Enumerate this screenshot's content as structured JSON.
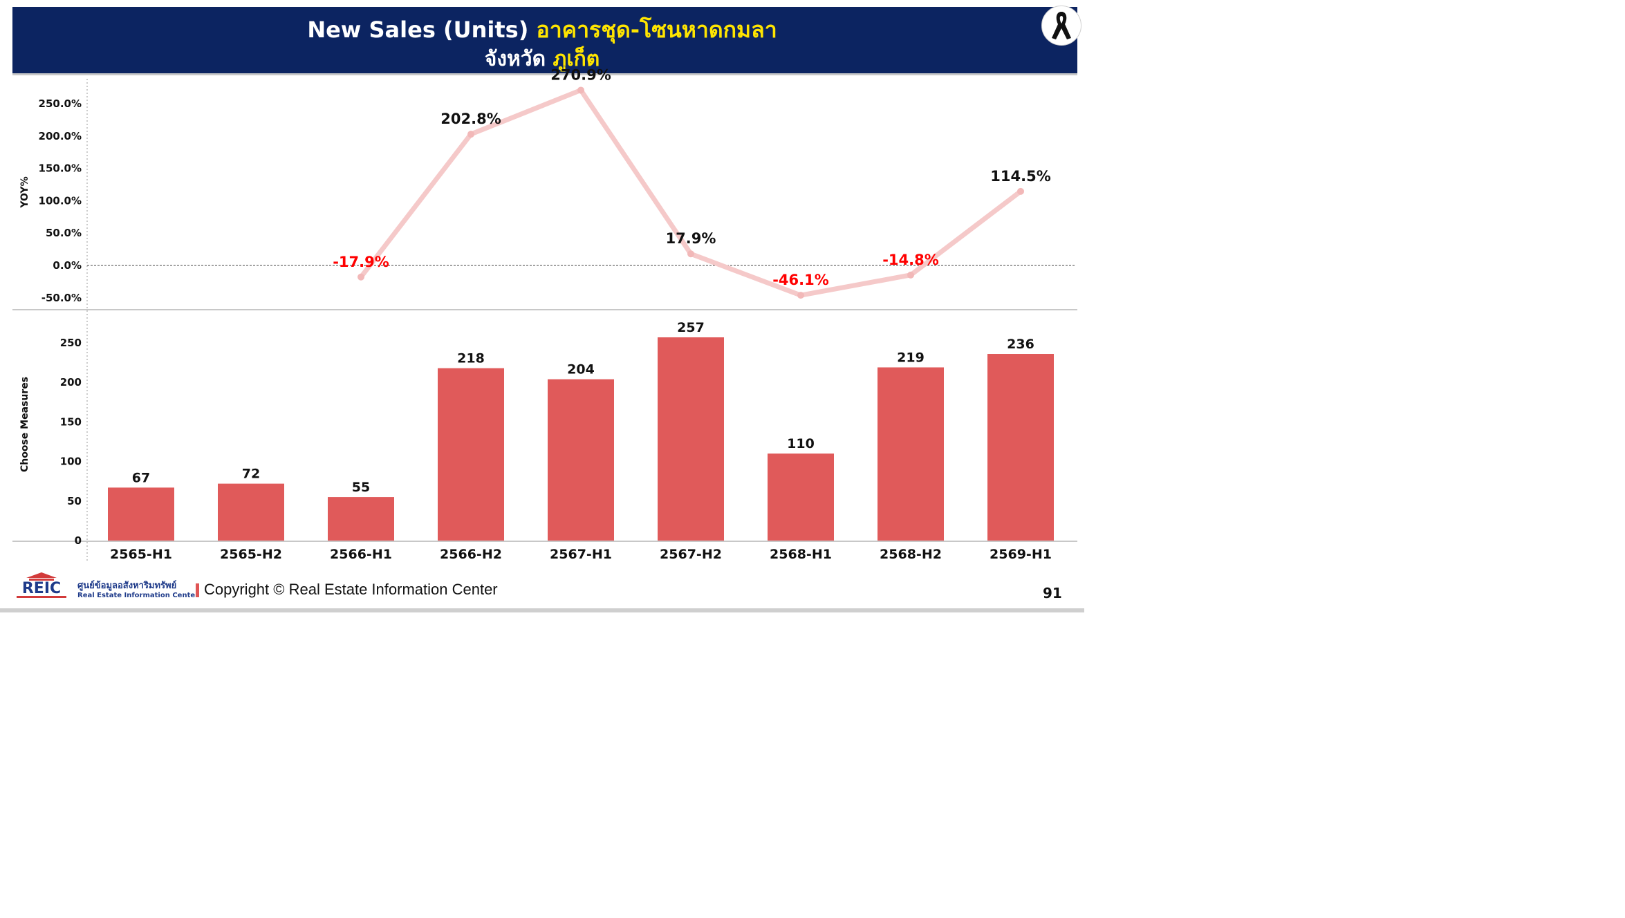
{
  "header": {
    "title_en": "New Sales (Units)",
    "title_th": "อาคารชุด-โซนหาดกมลา",
    "subtitle_prefix": "จังหวัด",
    "subtitle_province": "ภูเก็ต"
  },
  "icons": {
    "ribbon": "mourning-ribbon-icon",
    "logo": "reic-logo"
  },
  "footer": {
    "logo_text": "REIC",
    "org_th": "ศูนย์ข้อมูลอสังหาริมทรัพย์",
    "org_en": "Real Estate Information Center",
    "copyright": "Copyright © Real Estate Information Center",
    "page_number": "91"
  },
  "colors": {
    "header_bg": "#0c2461",
    "title_accent": "#ffe500",
    "bar": "#e05a5a",
    "line": "#f5c9c9",
    "negative_label": "#ff0000"
  },
  "chart_data": [
    {
      "type": "line",
      "ylabel": "YOY%",
      "categories": [
        "2565-H1",
        "2565-H2",
        "2566-H1",
        "2566-H2",
        "2567-H1",
        "2567-H2",
        "2568-H1",
        "2568-H2",
        "2569-H1"
      ],
      "values": [
        null,
        null,
        -17.9,
        202.8,
        270.9,
        17.9,
        -46.1,
        -14.8,
        114.5
      ],
      "labels": [
        "",
        "",
        "-17.9%",
        "202.8%",
        "270.9%",
        "17.9%",
        "-46.1%",
        "-14.8%",
        "114.5%"
      ],
      "yticks": [
        "250.0%",
        "200.0%",
        "150.0%",
        "100.0%",
        "50.0%",
        "0.0%",
        "-50.0%"
      ],
      "ytick_values": [
        250,
        200,
        150,
        100,
        50,
        0,
        -50
      ],
      "ylim": [
        -50,
        270.9
      ],
      "zero_line": "dashed"
    },
    {
      "type": "bar",
      "ylabel": "Choose Measures",
      "categories": [
        "2565-H1",
        "2565-H2",
        "2566-H1",
        "2566-H2",
        "2567-H1",
        "2567-H2",
        "2568-H1",
        "2568-H2",
        "2569-H1"
      ],
      "values": [
        67,
        72,
        55,
        218,
        204,
        257,
        110,
        219,
        236
      ],
      "yticks": [
        "250",
        "200",
        "150",
        "100",
        "50",
        "0"
      ],
      "ytick_values": [
        250,
        200,
        150,
        100,
        50,
        0
      ],
      "ylim": [
        0,
        257
      ]
    }
  ]
}
